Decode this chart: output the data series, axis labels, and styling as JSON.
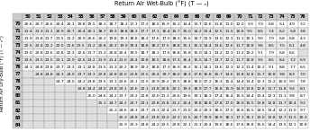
{
  "title": "Return Air Wet-Bulb (°F) (T — ₙ)",
  "col_header": [
    "",
    "50",
    "51",
    "52",
    "53",
    "54",
    "55",
    "56",
    "57",
    "58",
    "59",
    "60",
    "61",
    "62",
    "63",
    "64",
    "65",
    "66",
    "67",
    "68",
    "69",
    "70",
    "71",
    "72",
    "73",
    "74",
    "75",
    "76"
  ],
  "row_header_label": "Return Air Dry-Bulb (°F) (T — ₙᴰ)",
  "row_labels": [
    "70",
    "71",
    "72",
    "73",
    "74",
    "75",
    "76",
    "77",
    "78",
    "79",
    "80",
    "81",
    "82",
    "83",
    "84"
  ],
  "table_data": [
    [
      "20.6",
      "20.7",
      "20.6",
      "20.4",
      "20.1",
      "19.8",
      "19.5",
      "18.1",
      "18.7",
      "18.2",
      "17.1",
      "17.2",
      "18.5",
      "15.9",
      "15.2",
      "14.4",
      "13.7",
      "12.6",
      "11.8",
      "11.0",
      "12.0",
      "9.3",
      "7.9",
      "6.8",
      "5.1",
      "4.9",
      "3.2"
    ],
    [
      "21.4",
      "21.3",
      "21.1",
      "20.9",
      "20.7",
      "20.4",
      "20.1",
      "18.7",
      "19.3",
      "18.8",
      "18.3",
      "17.7",
      "17.1",
      "16.4",
      "15.7",
      "15.0",
      "14.2",
      "13.4",
      "12.5",
      "11.5",
      "10.6",
      "9.5",
      "8.5",
      "7.4",
      "6.2",
      "5.8",
      "3.8"
    ],
    [
      "21.9",
      "21.8",
      "21.7",
      "21.5",
      "21.2",
      "20.9",
      "20.6",
      "20.2",
      "19.8",
      "19.3",
      "18.8",
      "18.2",
      "17.6",
      "17.0",
      "18.3",
      "15.6",
      "14.7",
      "13.9",
      "13.0",
      "12.1",
      "11.1",
      "10.1",
      "9.0",
      "7.9",
      "6.8",
      "6.8",
      "4.3"
    ],
    [
      "22.5",
      "22.4",
      "22.2",
      "22.0",
      "21.6",
      "21.5",
      "21.2",
      "20.8",
      "20.3",
      "19.9",
      "19.4",
      "18.8",
      "18.2",
      "17.5",
      "18.8",
      "15.1",
      "15.3",
      "14.4",
      "13.6",
      "12.6",
      "11.7",
      "10.8",
      "9.6",
      "8.5",
      "7.5",
      "6.1",
      "4.8"
    ],
    [
      "23.0",
      "22.8",
      "22.6",
      "22.8",
      "22.3",
      "22.6",
      "21.7",
      "21.3",
      "20.8",
      "20.4",
      "19.5",
      "18.7",
      "18.1",
      "17.6",
      "16.8",
      "15.8",
      "15.0",
      "14.1",
      "13.2",
      "12.3",
      "11.2",
      "10.2",
      "9.1",
      "7.9",
      "6.8",
      "6.6",
      "-"
    ],
    [
      "23.6",
      "23.5",
      "23.5",
      "23.1",
      "22.9",
      "22.6",
      "23.2",
      "21.9",
      "21.4",
      "21.0",
      "20.4",
      "19.8",
      "18.5",
      "18.6",
      "17.3",
      "16.4",
      "15.5",
      "14.7",
      "13.7",
      "12.1",
      "11.7",
      "10.8",
      "9.5",
      "8.5",
      "8.4",
      "7.2",
      "6.9"
    ],
    [
      "24.1",
      "24.8",
      "23.8",
      "23.7",
      "23.3",
      "23.1",
      "22.8",
      "21.5",
      "21.3",
      "20.2",
      "18.9",
      "19.2",
      "18.8",
      "17.3",
      "16.9",
      "16.2",
      "15.1",
      "14.1",
      "13.6",
      "12.3",
      "12.3",
      "11.4",
      "10.2",
      "9.1",
      "8.8",
      "7.7",
      "6.5"
    ],
    [
      "-",
      "24.8",
      "24.8",
      "24.3",
      "24.0",
      "23.7",
      "23.3",
      "22.8",
      "22.8",
      "22.0",
      "21.8",
      "21.5",
      "20.4",
      "19.7",
      "18.0",
      "18.3",
      "17.8",
      "16.8",
      "15.7",
      "14.6",
      "13.8",
      "12.8",
      "11.7",
      "10.8",
      "9.8",
      "8.3",
      "7.0"
    ],
    [
      "-",
      "-",
      "-",
      "24.7",
      "24.5",
      "24.2",
      "23.8",
      "23.5",
      "23.1",
      "22.6",
      "22.1",
      "21.5",
      "20.9",
      "20.2",
      "19.5",
      "18.8",
      "18.0",
      "17.2",
      "16.3",
      "15.4",
      "14.4",
      "13.4",
      "12.3",
      "11.2",
      "10.0",
      "9.0",
      "7.8"
    ],
    [
      "-",
      "-",
      "-",
      "-",
      "-",
      "24.8",
      "24.4",
      "24.0",
      "23.8",
      "23.1",
      "22.6",
      "22.1",
      "21.8",
      "20.8",
      "20.1",
      "19.3",
      "18.9",
      "17.7",
      "16.8",
      "15.9",
      "14.9",
      "13.8",
      "12.8",
      "11.7",
      "11.8",
      "9.4",
      "8.1"
    ],
    [
      "-",
      "-",
      "-",
      "-",
      "-",
      "-",
      "25.0",
      "24.6",
      "24.2",
      "23.7",
      "23.2",
      "22.8",
      "22.0",
      "21.3",
      "20.6",
      "19.6",
      "19.1",
      "18.3",
      "17.4",
      "16.4",
      "15.5",
      "14.4",
      "13.4",
      "12.3",
      "11.1",
      "9.8",
      "8.7"
    ],
    [
      "-",
      "-",
      "-",
      "-",
      "-",
      "-",
      "-",
      "25.1",
      "24.7",
      "24.2",
      "23.7",
      "23.1",
      "22.8",
      "21.8",
      "21.2",
      "20.4",
      "19.8",
      "18.8",
      "17.8",
      "17.0",
      "16.0",
      "15.5",
      "13.8",
      "12.8",
      "11.7",
      "10.4",
      "9.2"
    ],
    [
      "-",
      "-",
      "-",
      "-",
      "-",
      "-",
      "-",
      "-",
      "25.2",
      "24.6",
      "24.3",
      "23.7",
      "23.1",
      "22.4",
      "21.7",
      "21.0",
      "20.2",
      "19.3",
      "18.5",
      "17.5",
      "16.6",
      "15.5",
      "14.5",
      "13.4",
      "12.2",
      "11.0",
      "9.7"
    ],
    [
      "-",
      "-",
      "-",
      "-",
      "-",
      "-",
      "-",
      "-",
      "-",
      "25.3",
      "24.8",
      "24.2",
      "23.8",
      "23.0",
      "22.3",
      "21.5",
      "20.7",
      "19.9",
      "18.9",
      "18.1",
      "17.1",
      "16.1",
      "13.0",
      "13.8",
      "12.7",
      "11.5",
      "10.3"
    ],
    [
      "-",
      "-",
      "-",
      "-",
      "-",
      "-",
      "-",
      "-",
      "-",
      "25.9",
      "25.3",
      "24.8",
      "24.2",
      "23.5",
      "22.8",
      "22.1",
      "21.3",
      "20.4",
      "19.6",
      "18.6",
      "17.6",
      "16.8",
      "15.6",
      "14.4",
      "13.5",
      "12.1",
      "10.8"
    ]
  ],
  "header_bg": "#cccccc",
  "cell_bg_odd": "#ffffff",
  "cell_bg_even": "#e8e8e8",
  "dash_bg": "#e0e0e0",
  "border_color": "#999999",
  "title_fontsize": 4.8,
  "cell_fontsize": 3.2,
  "header_fontsize": 3.4
}
